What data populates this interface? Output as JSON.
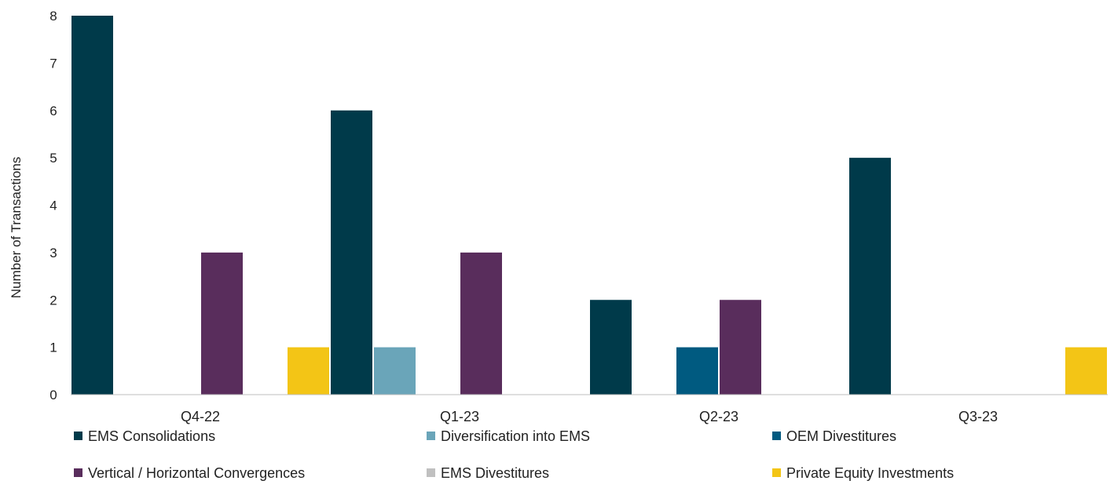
{
  "chart_data": {
    "type": "bar",
    "title": "",
    "xlabel": "",
    "ylabel": "Number of Transactions",
    "ylim": [
      0,
      8
    ],
    "yticks": [
      0,
      1,
      2,
      3,
      4,
      5,
      6,
      7,
      8
    ],
    "grid": false,
    "legend_position": "bottom",
    "categories": [
      "Q4-22",
      "Q1-23",
      "Q2-23",
      "Q3-23"
    ],
    "series": [
      {
        "name": "EMS Consolidations",
        "color": "#003a4a",
        "values": [
          8,
          6,
          2,
          5
        ]
      },
      {
        "name": "Diversification into EMS",
        "color": "#6aa5b9",
        "values": [
          0,
          1,
          0,
          0
        ]
      },
      {
        "name": "OEM Divestitures",
        "color": "#005a80",
        "values": [
          0,
          0,
          1,
          0
        ]
      },
      {
        "name": "Vertical / Horizontal Convergences",
        "color": "#592d5c",
        "values": [
          3,
          3,
          2,
          0
        ]
      },
      {
        "name": "EMS Divestitures",
        "color": "#c0c0c0",
        "values": [
          0,
          0,
          0,
          0
        ]
      },
      {
        "name": "Private Equity Investments",
        "color": "#f3c516",
        "values": [
          1,
          0,
          0,
          1
        ]
      }
    ]
  }
}
